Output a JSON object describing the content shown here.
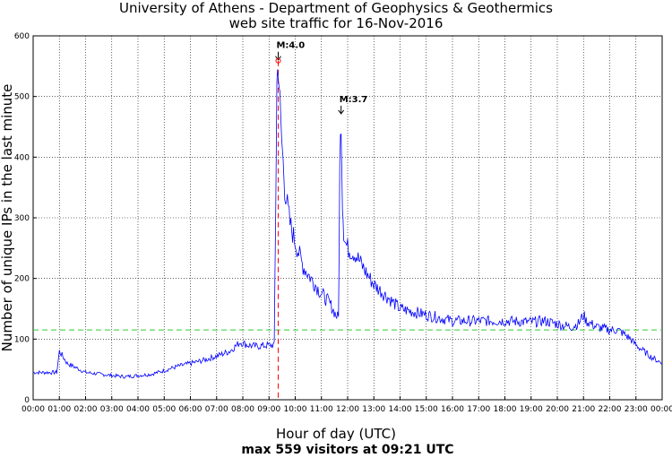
{
  "chart_data": {
    "type": "line",
    "title": "University of Athens - Department of Geophysics & Geothermics",
    "subtitle": "web site traffic for 16-Nov-2016",
    "xlabel": "Hour of day (UTC)",
    "footer": "max 559 visitors at 09:21 UTC",
    "ylabel": "Number of unique IPs in the last minute",
    "xlim": [
      0,
      24
    ],
    "ylim": [
      0,
      600
    ],
    "grid": true,
    "x_ticks": [
      "00:00",
      "01:00",
      "02:00",
      "03:00",
      "04:00",
      "05:00",
      "06:00",
      "07:00",
      "08:00",
      "09:00",
      "10:00",
      "11:00",
      "12:00",
      "13:00",
      "14:00",
      "15:00",
      "16:00",
      "17:00",
      "18:00",
      "19:00",
      "20:00",
      "21:00",
      "22:00",
      "23:00",
      "00:00"
    ],
    "y_ticks": [
      0,
      100,
      200,
      300,
      400,
      500,
      600
    ],
    "series": [
      {
        "color": "#0000ff",
        "x": [
          0.0,
          0.5,
          0.9,
          1.0,
          1.3,
          2.0,
          3.0,
          3.5,
          4.0,
          4.5,
          5.0,
          5.5,
          6.0,
          6.5,
          7.0,
          7.5,
          7.9,
          8.2,
          8.5,
          9.0,
          9.2,
          9.25,
          9.3,
          9.35,
          9.45,
          9.6,
          9.8,
          10.0,
          10.3,
          10.6,
          11.0,
          11.3,
          11.55,
          11.65,
          11.7,
          11.75,
          11.8,
          11.85,
          11.9,
          12.0,
          12.3,
          12.7,
          13.0,
          13.5,
          14.0,
          14.5,
          15.0,
          15.5,
          16.0,
          17.0,
          18.0,
          19.0,
          19.5,
          20.0,
          20.5,
          20.8,
          21.0,
          21.1,
          21.5,
          22.0,
          22.3,
          22.5,
          22.8,
          23.0,
          23.3,
          23.6,
          24.0
        ],
        "y": [
          45,
          45,
          45,
          80,
          60,
          45,
          40,
          38,
          40,
          42,
          48,
          55,
          60,
          65,
          72,
          80,
          95,
          90,
          88,
          90,
          90,
          300,
          520,
          559,
          450,
          350,
          290,
          260,
          220,
          200,
          175,
          160,
          140,
          135,
          380,
          470,
          330,
          280,
          260,
          250,
          240,
          210,
          190,
          170,
          150,
          145,
          140,
          135,
          130,
          130,
          130,
          128,
          130,
          125,
          120,
          125,
          140,
          130,
          120,
          115,
          115,
          110,
          100,
          90,
          80,
          70,
          60
        ]
      }
    ],
    "reference_line": {
      "y": 115,
      "color": "#33cc33"
    },
    "event_line": {
      "x": 9.35,
      "color": "#ff0000"
    },
    "annotations": [
      {
        "label": "M:4.0",
        "x": 9.35,
        "y": 559
      },
      {
        "label": "M:3.7",
        "x": 11.75,
        "y": 470
      }
    ]
  }
}
